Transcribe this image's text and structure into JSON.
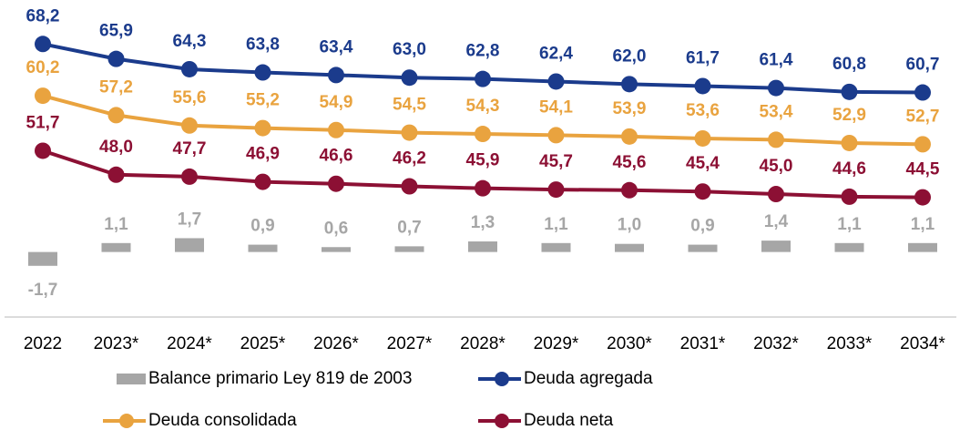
{
  "chart_data": {
    "type": "line",
    "categories": [
      "2022",
      "2023*",
      "2024*",
      "2025*",
      "2026*",
      "2027*",
      "2028*",
      "2029*",
      "2030*",
      "2031*",
      "2032*",
      "2033*",
      "2034*"
    ],
    "ylim": [
      26,
      75
    ],
    "y2lim": [
      -8,
      31
    ],
    "series": [
      {
        "name": "Balance primario Ley 819 de 2003",
        "type": "bar",
        "axis": "y2",
        "color": "#a6a6a6",
        "values": [
          -1.7,
          1.1,
          1.7,
          0.9,
          0.6,
          0.7,
          1.3,
          1.1,
          1.0,
          0.9,
          1.4,
          1.1,
          1.1
        ],
        "value_labels": [
          "-1,7",
          "1,1",
          "1,7",
          "0,9",
          "0,6",
          "0,7",
          "1,3",
          "1,1",
          "1,0",
          "0,9",
          "1,4",
          "1,1",
          "1,1"
        ]
      },
      {
        "name": "Deuda agregada",
        "color": "#1b3b8c",
        "values": [
          68.2,
          65.9,
          64.3,
          63.8,
          63.4,
          63.0,
          62.8,
          62.4,
          62.0,
          61.7,
          61.4,
          60.8,
          60.7
        ],
        "value_labels": [
          "68,2",
          "65,9",
          "64,3",
          "63,8",
          "63,4",
          "63,0",
          "62,8",
          "62,4",
          "62,0",
          "61,7",
          "61,4",
          "60,8",
          "60,7"
        ]
      },
      {
        "name": "Deuda consolidada",
        "color": "#e9a33f",
        "values": [
          60.2,
          57.2,
          55.6,
          55.2,
          54.9,
          54.5,
          54.3,
          54.1,
          53.9,
          53.6,
          53.4,
          52.9,
          52.7
        ],
        "value_labels": [
          "60,2",
          "57,2",
          "55,6",
          "55,2",
          "54,9",
          "54,5",
          "54,3",
          "54,1",
          "53,9",
          "53,6",
          "53,4",
          "52,9",
          "52,7"
        ]
      },
      {
        "name": "Deuda neta",
        "color": "#8c1034",
        "values": [
          51.7,
          48.0,
          47.7,
          46.9,
          46.6,
          46.2,
          45.9,
          45.7,
          45.6,
          45.4,
          45.0,
          44.6,
          44.5
        ],
        "value_labels": [
          "51,7",
          "48,0",
          "47,7",
          "46,9",
          "46,6",
          "46,2",
          "45,9",
          "45,7",
          "45,6",
          "45,4",
          "45,0",
          "44,6",
          "44,5"
        ]
      }
    ]
  }
}
